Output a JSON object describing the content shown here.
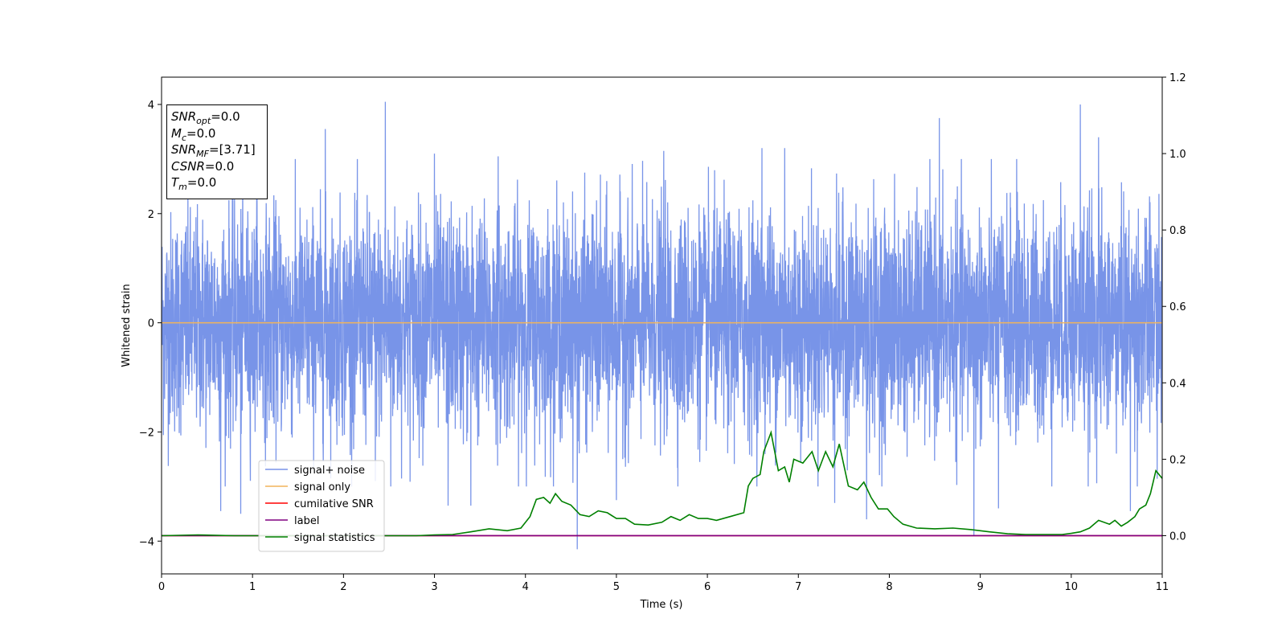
{
  "chart_data": {
    "type": "line",
    "title": "",
    "xlabel": "Time (s)",
    "ylabel": "Whitened strain",
    "xlim": [
      0,
      11
    ],
    "ylim": [
      -4.6,
      4.5
    ],
    "y2lim": [
      -0.1,
      1.2
    ],
    "xticks": [
      "0",
      "1",
      "2",
      "3",
      "4",
      "5",
      "6",
      "7",
      "8",
      "9",
      "10",
      "11"
    ],
    "yticks": [
      "−4",
      "−2",
      "0",
      "2",
      "4"
    ],
    "y2ticks": [
      "0.0",
      "0.2",
      "0.4",
      "0.6",
      "0.8",
      "1.0",
      "1.2"
    ],
    "grid": false,
    "legend_position": "lower-left",
    "series": [
      {
        "name": "signal+ noise",
        "color": "#7894e8",
        "axis": "left",
        "noise_sigma": 1.0,
        "duration": 11,
        "spikes": [
          [
            0.65,
            -3.45
          ],
          [
            0.87,
            -3.5
          ],
          [
            1.05,
            2.45
          ],
          [
            1.8,
            3.55
          ],
          [
            2.35,
            -2.9
          ],
          [
            2.46,
            4.05
          ],
          [
            2.52,
            -3.0
          ],
          [
            3.0,
            3.1
          ],
          [
            3.15,
            -3.35
          ],
          [
            3.4,
            -3.35
          ],
          [
            3.7,
            3.05
          ],
          [
            4.57,
            -4.15
          ],
          [
            5.0,
            -3.25
          ],
          [
            5.52,
            3.15
          ],
          [
            6.6,
            3.2
          ],
          [
            6.85,
            3.2
          ],
          [
            7.4,
            -3.3
          ],
          [
            7.75,
            -3.6
          ],
          [
            8.55,
            3.75
          ],
          [
            8.93,
            -3.9
          ],
          [
            9.2,
            -3.4
          ],
          [
            9.4,
            3.0
          ],
          [
            10.1,
            4.0
          ],
          [
            10.3,
            3.4
          ],
          [
            10.65,
            -3.45
          ]
        ]
      },
      {
        "name": "signal only",
        "color": "#f2b45a",
        "axis": "left",
        "constant": 0.0
      },
      {
        "name": "cumilative SNR",
        "color": "#ff0000",
        "axis": "right",
        "constant": 0.0
      },
      {
        "name": "label",
        "color": "#800080",
        "axis": "right",
        "constant": 0.0
      },
      {
        "name": "signal statistics",
        "color": "#008000",
        "axis": "right",
        "x": [
          0.0,
          0.4,
          0.8,
          1.2,
          1.6,
          2.0,
          2.4,
          2.8,
          3.0,
          3.2,
          3.4,
          3.6,
          3.8,
          3.95,
          4.05,
          4.12,
          4.2,
          4.27,
          4.33,
          4.4,
          4.5,
          4.6,
          4.7,
          4.8,
          4.9,
          5.0,
          5.1,
          5.2,
          5.35,
          5.5,
          5.6,
          5.7,
          5.8,
          5.9,
          6.0,
          6.1,
          6.25,
          6.4,
          6.45,
          6.5,
          6.58,
          6.62,
          6.7,
          6.78,
          6.85,
          6.9,
          6.95,
          7.05,
          7.15,
          7.22,
          7.3,
          7.38,
          7.45,
          7.55,
          7.65,
          7.72,
          7.8,
          7.88,
          7.98,
          8.05,
          8.15,
          8.3,
          8.5,
          8.7,
          8.9,
          9.1,
          9.3,
          9.5,
          9.7,
          9.9,
          10.0,
          10.1,
          10.2,
          10.3,
          10.42,
          10.48,
          10.55,
          10.62,
          10.7,
          10.75,
          10.82,
          10.87,
          10.93,
          11.0
        ],
        "y": [
          0.0,
          0.002,
          0.0,
          0.0,
          0.0,
          0.0,
          0.0,
          0.0,
          0.002,
          0.003,
          0.01,
          0.018,
          0.013,
          0.02,
          0.05,
          0.095,
          0.1,
          0.085,
          0.11,
          0.09,
          0.08,
          0.055,
          0.05,
          0.065,
          0.06,
          0.045,
          0.045,
          0.03,
          0.028,
          0.035,
          0.05,
          0.04,
          0.055,
          0.045,
          0.045,
          0.04,
          0.05,
          0.06,
          0.13,
          0.15,
          0.16,
          0.22,
          0.27,
          0.17,
          0.18,
          0.14,
          0.2,
          0.19,
          0.22,
          0.17,
          0.22,
          0.18,
          0.24,
          0.13,
          0.12,
          0.14,
          0.1,
          0.07,
          0.07,
          0.05,
          0.03,
          0.02,
          0.018,
          0.02,
          0.016,
          0.01,
          0.005,
          0.003,
          0.003,
          0.003,
          0.006,
          0.01,
          0.02,
          0.04,
          0.03,
          0.04,
          0.025,
          0.035,
          0.05,
          0.07,
          0.08,
          0.11,
          0.17,
          0.15
        ]
      }
    ],
    "annotation": {
      "lines": [
        {
          "name": "SNR",
          "sub": "opt",
          "value": "=0.0"
        },
        {
          "name": "M",
          "sub": "c",
          "value": "=0.0"
        },
        {
          "name": "SNR",
          "sub": "MF",
          "value": "=[3.71]"
        },
        {
          "name": "CSNR",
          "sub": "",
          "value": "=0.0"
        },
        {
          "name": "T",
          "sub": "m",
          "value": "=0.0"
        }
      ]
    }
  }
}
